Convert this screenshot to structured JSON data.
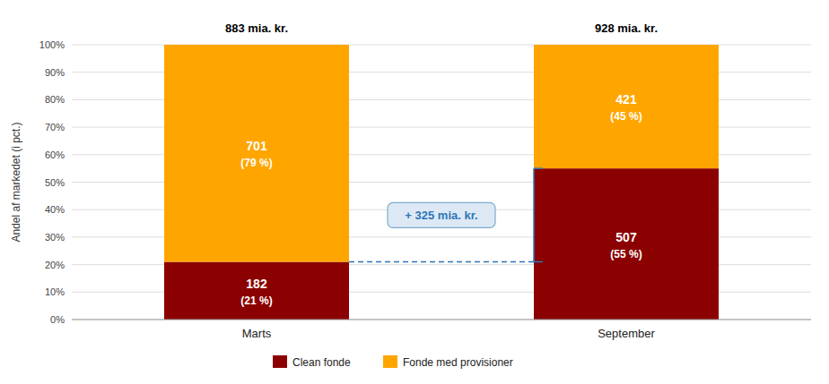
{
  "chart_data": {
    "type": "bar",
    "stacked": true,
    "data_labels": true,
    "categories": [
      "Marts",
      "September"
    ],
    "series": [
      {
        "name": "Clean fonde",
        "color": "#8B0000",
        "values": [
          21,
          55
        ],
        "value_labels": [
          "(21 %)",
          "(55 %)"
        ],
        "amounts": [
          182,
          507
        ]
      },
      {
        "name": "Fonde med provisioner",
        "color": "#FFA500",
        "values": [
          79,
          45
        ],
        "value_labels": [
          "(79 %)",
          "(45 %)"
        ],
        "amounts": [
          701,
          421
        ]
      }
    ],
    "bar_titles": [
      "883 mia. kr.",
      "928 mia. kr."
    ],
    "annotations": [
      {
        "text": "+ 325 mia. kr.",
        "color": "#2E75B6"
      }
    ],
    "ylabel": "Andel af markedet (i pct.)",
    "ylim": [
      0,
      100
    ],
    "yticks": [
      {
        "value": 0,
        "label": "0%"
      },
      {
        "value": 10,
        "label": "10%"
      },
      {
        "value": 20,
        "label": "20%"
      },
      {
        "value": 30,
        "label": "30%"
      },
      {
        "value": 40,
        "label": "40%"
      },
      {
        "value": 50,
        "label": "50%"
      },
      {
        "value": 60,
        "label": "60%"
      },
      {
        "value": 70,
        "label": "70%"
      },
      {
        "value": 80,
        "label": "80%"
      },
      {
        "value": 90,
        "label": "90%"
      },
      {
        "value": 100,
        "label": "100%"
      }
    ],
    "grid": true,
    "legend": "bottom"
  }
}
